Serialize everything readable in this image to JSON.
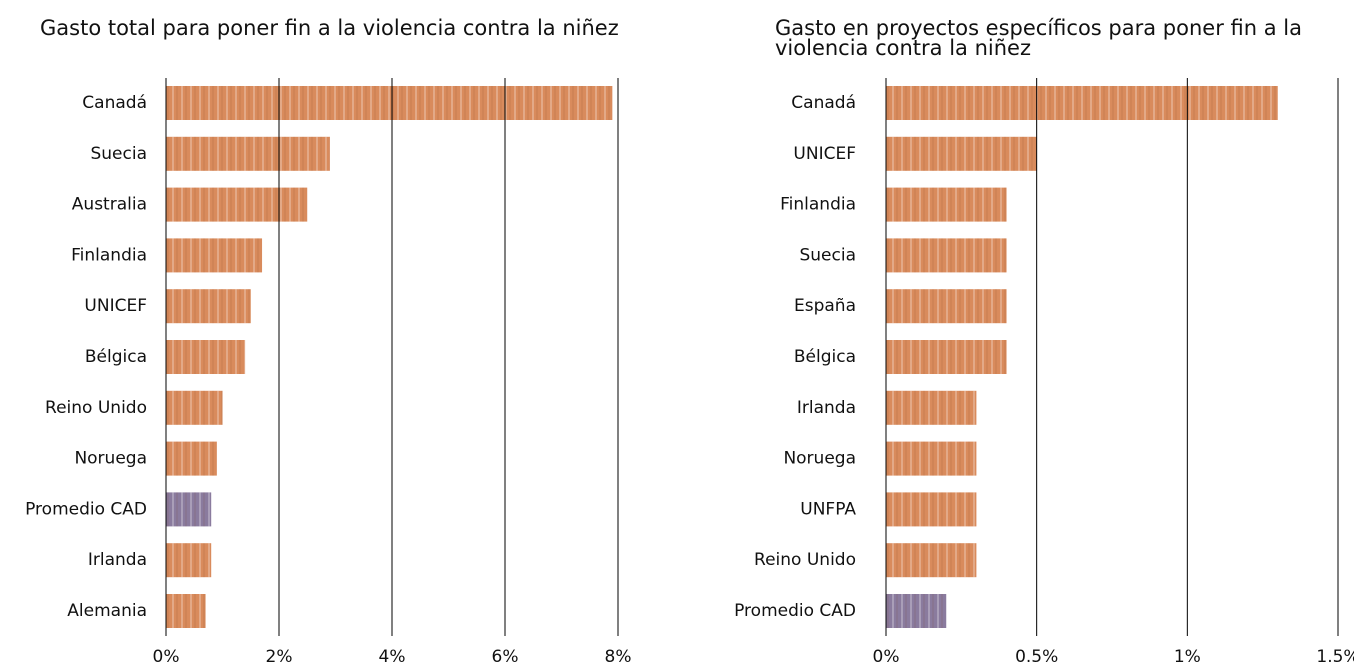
{
  "chart_data": [
    {
      "type": "bar",
      "orientation": "horizontal",
      "title": "Gasto total para poner fin a la violencia contra la niñez",
      "categories": [
        "Canadá",
        "Suecia",
        "Australia",
        "Finlandia",
        "UNICEF",
        "Bélgica",
        "Reino Unido",
        "Noruega",
        "Promedio CAD",
        "Irlanda",
        "Alemania"
      ],
      "values": [
        7.9,
        2.9,
        2.5,
        1.7,
        1.5,
        1.4,
        1.0,
        0.9,
        0.8,
        0.8,
        0.7
      ],
      "colors": [
        "#d98b5c",
        "#d98b5c",
        "#d98b5c",
        "#d98b5c",
        "#d98b5c",
        "#d98b5c",
        "#d98b5c",
        "#d98b5c",
        "#8a7b9e",
        "#d98b5c",
        "#d98b5c"
      ],
      "xlim": [
        0,
        8
      ],
      "xticks": [
        {
          "value": 0,
          "label": "0%"
        },
        {
          "value": 2,
          "label": "2%"
        },
        {
          "value": 4,
          "label": "4%"
        },
        {
          "value": 6,
          "label": "6%"
        },
        {
          "value": 8,
          "label": "8%"
        }
      ],
      "grid": true
    },
    {
      "type": "bar",
      "orientation": "horizontal",
      "title": "Gasto en proyectos específicos para poner fin a la violencia contra la niñez",
      "categories": [
        "Canadá",
        "UNICEF",
        "Finlandia",
        "Suecia",
        "España",
        "Bélgica",
        "Irlanda",
        "Noruega",
        "UNFPA",
        "Reino Unido",
        "Promedio CAD"
      ],
      "values": [
        1.3,
        0.5,
        0.4,
        0.4,
        0.4,
        0.4,
        0.3,
        0.3,
        0.3,
        0.3,
        0.2
      ],
      "colors": [
        "#d98b5c",
        "#d98b5c",
        "#d98b5c",
        "#d98b5c",
        "#d98b5c",
        "#d98b5c",
        "#d98b5c",
        "#d98b5c",
        "#d98b5c",
        "#d98b5c",
        "#8a7b9e"
      ],
      "xlim": [
        0,
        1.5
      ],
      "xticks": [
        {
          "value": 0,
          "label": "0%"
        },
        {
          "value": 0.5,
          "label": "0.5%"
        },
        {
          "value": 1,
          "label": "1%"
        },
        {
          "value": 1.5,
          "label": "1.5%"
        }
      ],
      "grid": true
    }
  ]
}
